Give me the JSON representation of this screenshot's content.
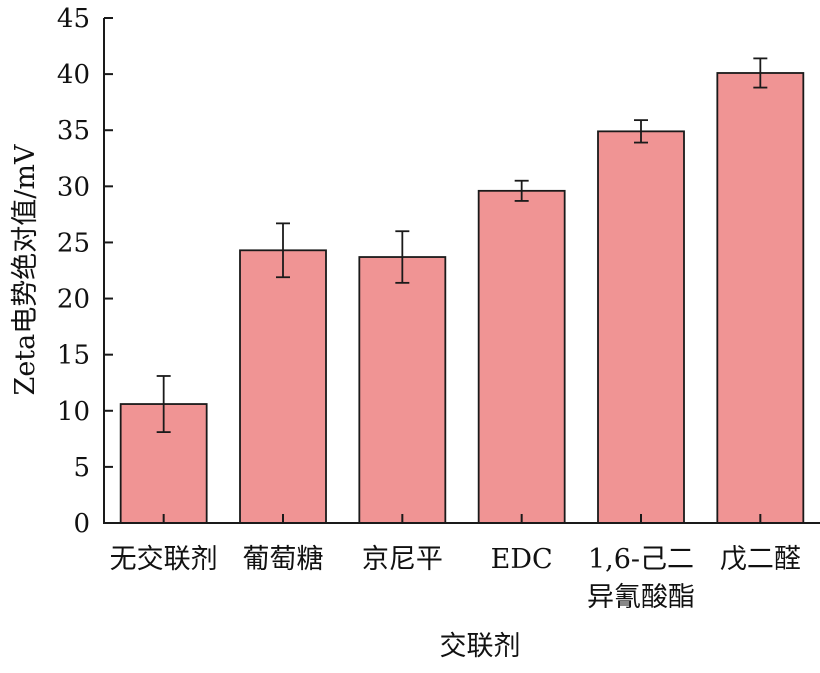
{
  "chart_data": {
    "type": "bar",
    "title": "",
    "xlabel": "交联剂",
    "ylabel": "Zeta电势绝对值/mV",
    "categories": [
      [
        "无交联剂"
      ],
      [
        "葡萄糖"
      ],
      [
        "京尼平"
      ],
      [
        "EDC"
      ],
      [
        "1,6-己二",
        "异氰酸酯"
      ],
      [
        "戊二醛"
      ]
    ],
    "values": [
      10.6,
      24.3,
      23.7,
      29.6,
      34.9,
      40.1
    ],
    "errors": [
      2.5,
      2.4,
      2.3,
      0.9,
      1.0,
      1.3
    ],
    "ylim": [
      0,
      45
    ],
    "yticks": [
      0,
      5,
      10,
      15,
      20,
      25,
      30,
      35,
      40,
      45
    ],
    "grid": false,
    "legend": "none",
    "bar_color": "#f09494",
    "bar_edge_color": "#1a1a1a",
    "axis_color": "#1a1a1a"
  }
}
